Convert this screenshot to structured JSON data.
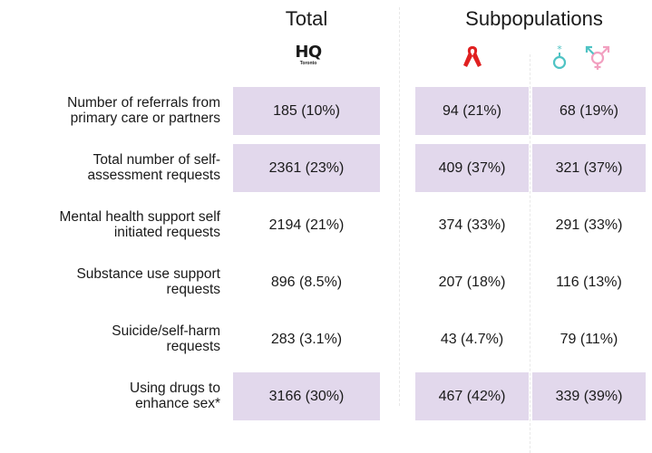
{
  "headers": {
    "total": "Total",
    "subpopulations": "Subpopulations"
  },
  "logo": {
    "main": "HQ",
    "sub": "Toronto"
  },
  "icons": {
    "col2": "red-ribbon-icon",
    "col3a": "trans-male-symbol-icon",
    "col3b": "transgender-symbol-icon",
    "colors": {
      "ribbon": "#e02020",
      "symbol_teal": "#4fc3c4",
      "symbol_pink": "#f2a0c0"
    }
  },
  "highlight_color": "#e2d8ec",
  "rows": [
    {
      "label_1": "Number of referrals from",
      "label_2": "primary care or partners",
      "total": "185 (10%)",
      "sub1": "94 (21%)",
      "sub2": "68 (19%)",
      "highlight": true
    },
    {
      "label_1": "Total number of self-",
      "label_2": "assessment requests",
      "total": "2361 (23%)",
      "sub1": "409 (37%)",
      "sub2": "321 (37%)",
      "highlight": true
    },
    {
      "label_1": "Mental health support self",
      "label_2": "initiated requests",
      "total": "2194 (21%)",
      "sub1": "374 (33%)",
      "sub2": "291 (33%)",
      "highlight": false
    },
    {
      "label_1": "Substance use support",
      "label_2": "requests",
      "total": "896 (8.5%)",
      "sub1": "207 (18%)",
      "sub2": "116 (13%)",
      "highlight": false
    },
    {
      "label_1": "Suicide/self-harm",
      "label_2": "requests",
      "total": "283 (3.1%)",
      "sub1": "43 (4.7%)",
      "sub2": "79 (11%)",
      "highlight": false
    },
    {
      "label_1": "Using drugs to",
      "label_2": "enhance sex*",
      "total": "3166 (30%)",
      "sub1": "467 (42%)",
      "sub2": "339 (39%)",
      "highlight": true
    }
  ]
}
